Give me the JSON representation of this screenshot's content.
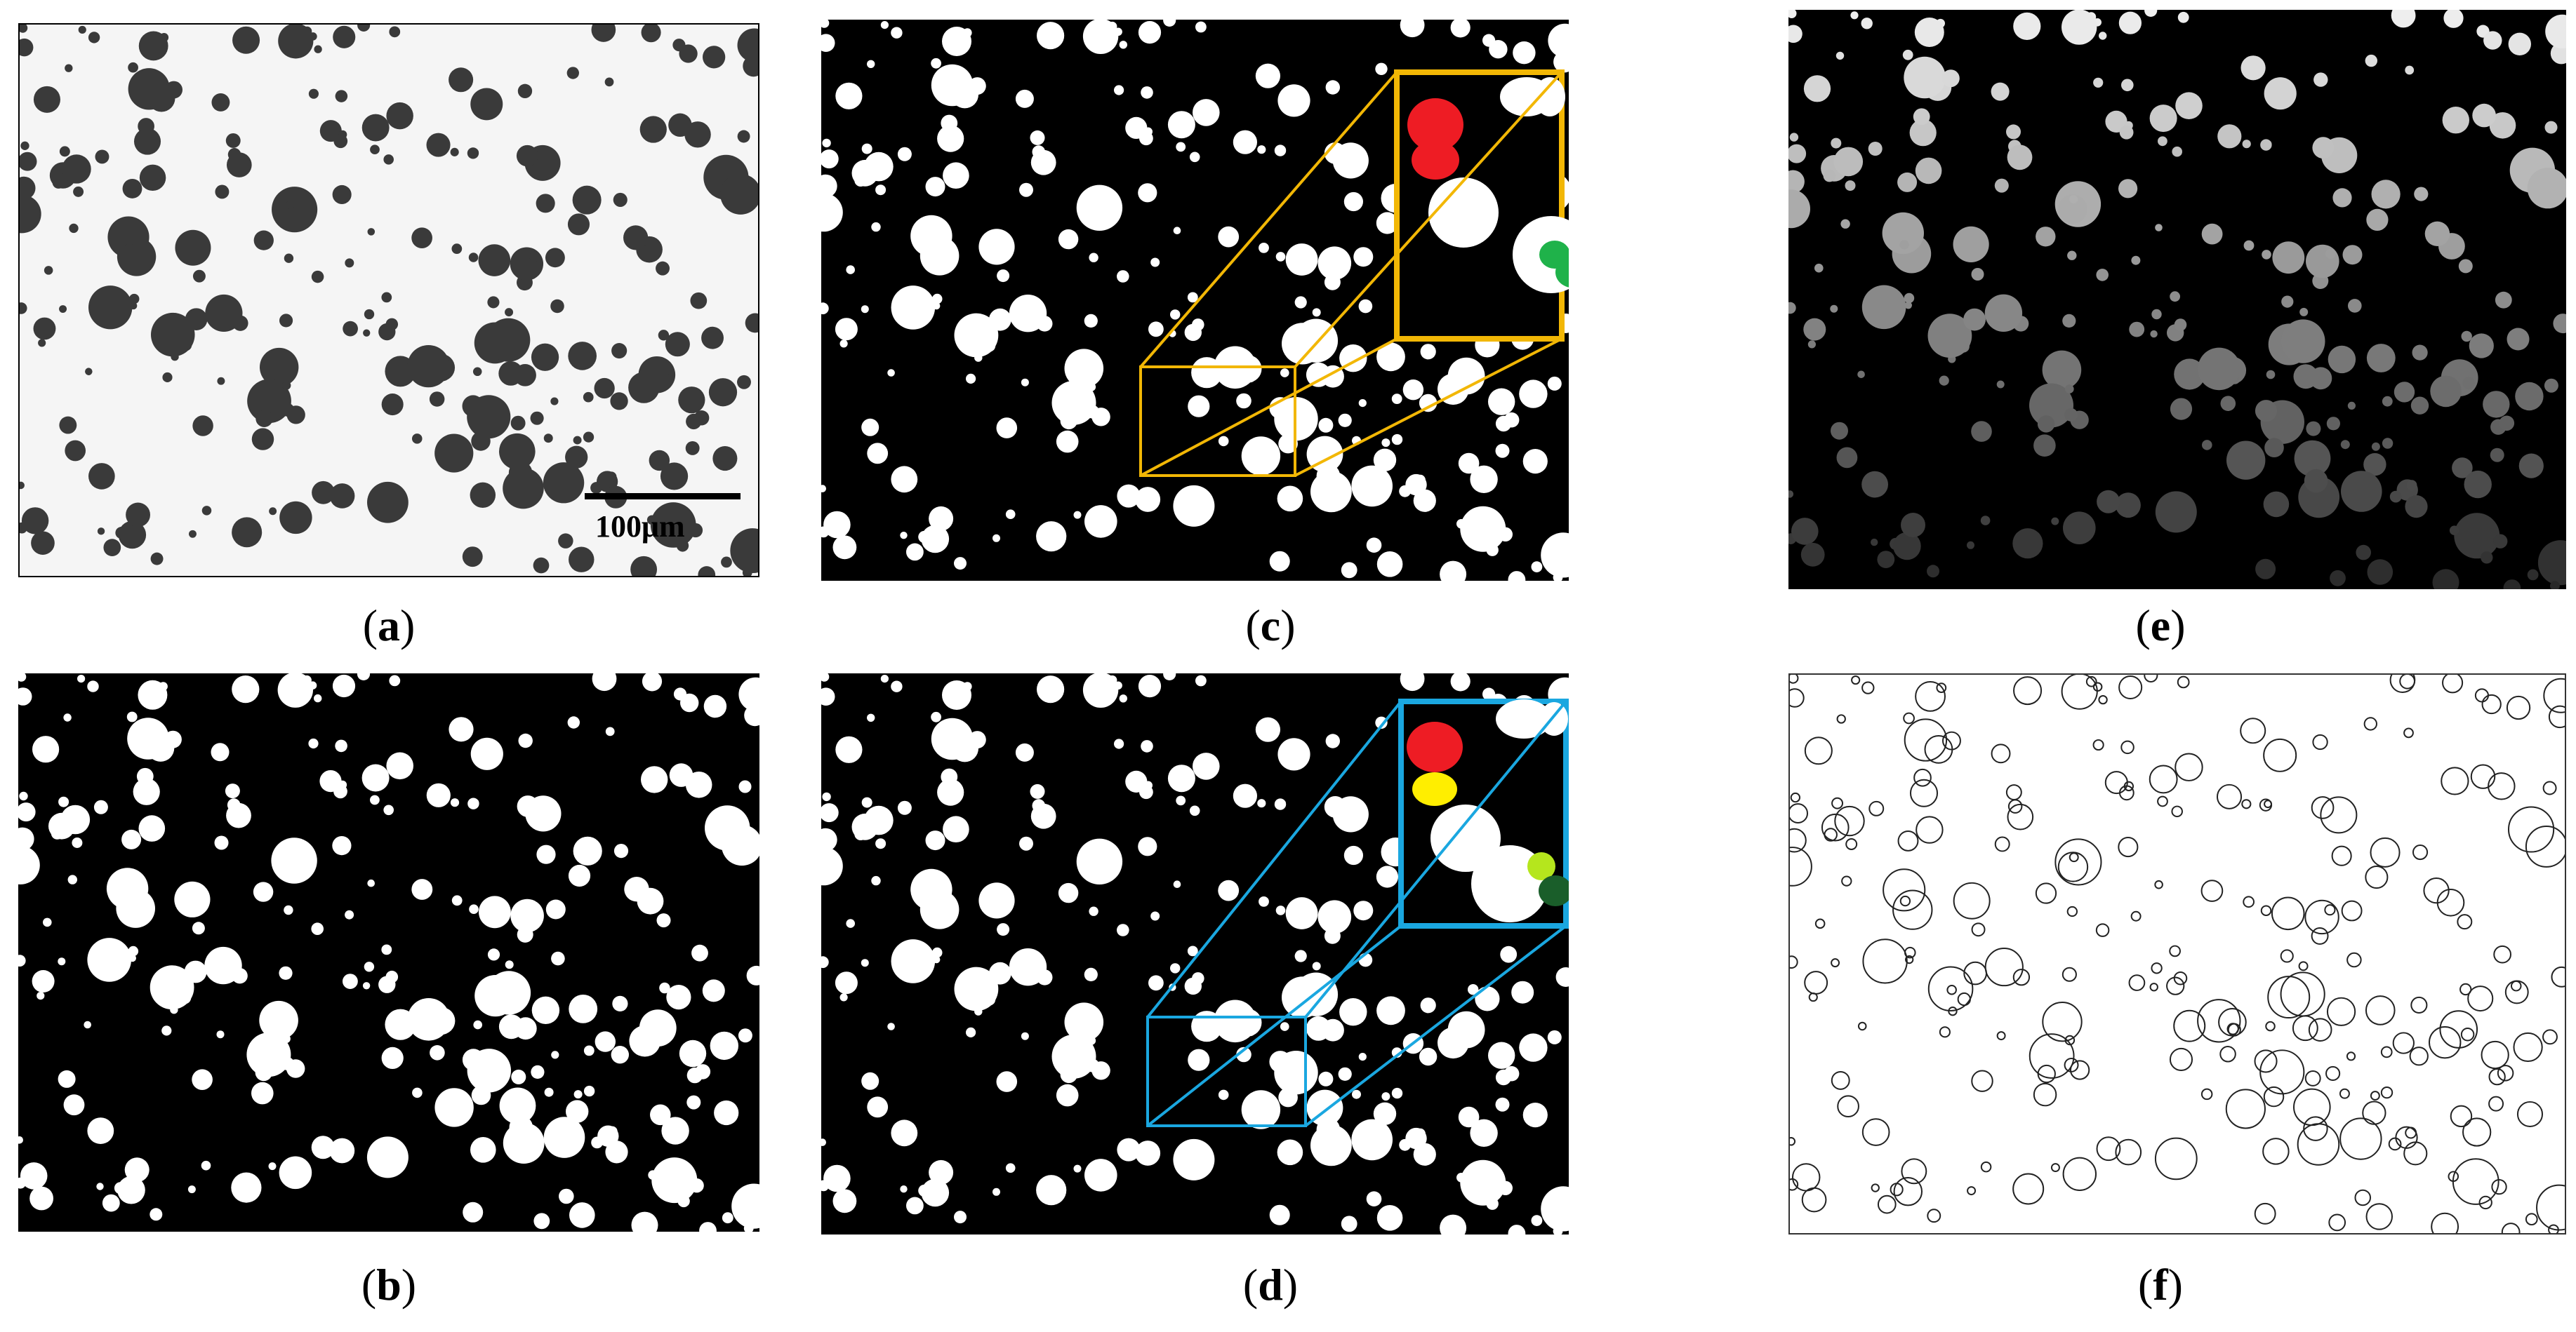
{
  "figure": {
    "panels": [
      {
        "id": "a",
        "caption_open": "(",
        "caption_letter": "a",
        "caption_close": ")",
        "background": "#f5f5f5",
        "particle_color": "#3a3a3a"
      },
      {
        "id": "b",
        "caption_open": "(",
        "caption_letter": "b",
        "caption_close": ")",
        "background": "#000000",
        "particle_color": "#ffffff"
      },
      {
        "id": "c",
        "caption_open": "(",
        "caption_letter": "c",
        "caption_close": ")",
        "background": "#000000",
        "particle_color": "#ffffff",
        "inset_border_color": "#f2b705"
      },
      {
        "id": "d",
        "caption_open": "(",
        "caption_letter": "d",
        "caption_close": ")",
        "background": "#000000",
        "particle_color": "#ffffff",
        "inset_border_color": "#1aa7e0"
      },
      {
        "id": "e",
        "caption_open": "(",
        "caption_letter": "e",
        "caption_close": ")",
        "background": "#000000",
        "particle_color": "#9a9a9a"
      },
      {
        "id": "f",
        "caption_open": "(",
        "caption_letter": "f",
        "caption_close": ")",
        "background": "#ffffff",
        "particle_color": "#222222"
      }
    ],
    "scale_bar": {
      "label": "100μm"
    },
    "highlight_colors": {
      "red": "#ee1c24",
      "green": "#1fb24a",
      "yellow": "#ffee00",
      "lime": "#b5e61d",
      "dark_green": "#1a5e2a"
    }
  }
}
